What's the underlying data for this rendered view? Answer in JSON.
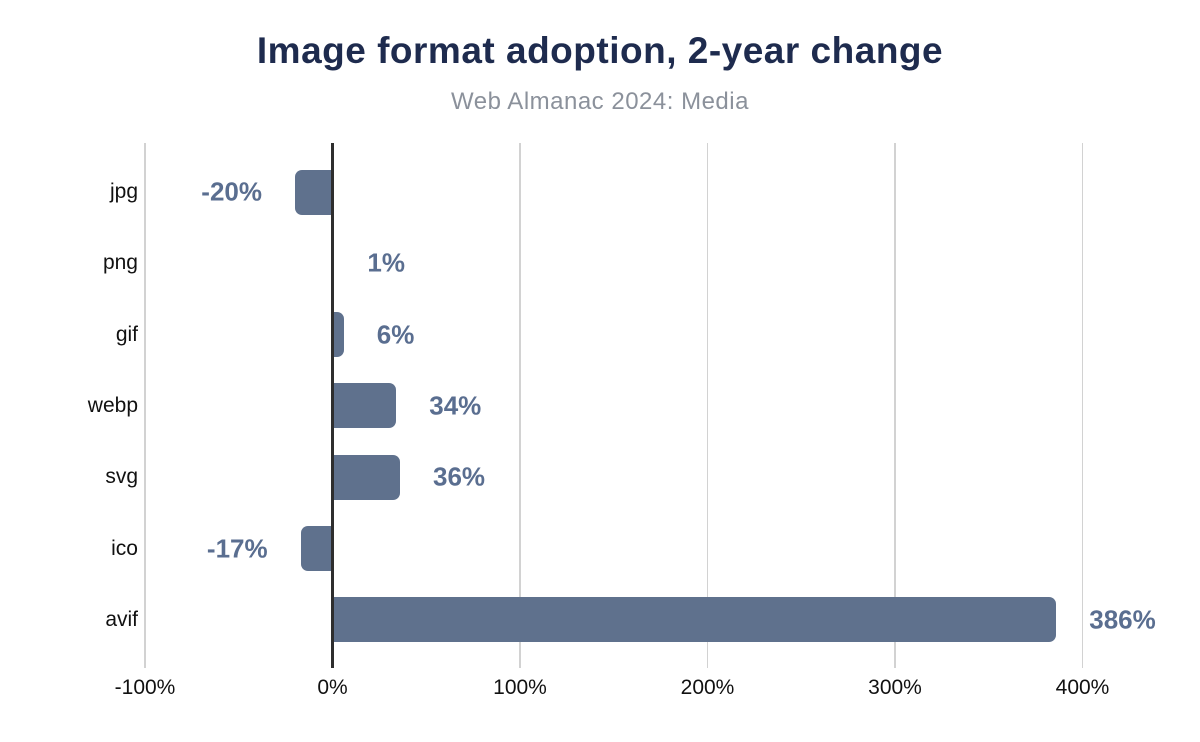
{
  "chart_data": {
    "type": "bar",
    "orientation": "horizontal",
    "title": "Image format adoption, 2-year change",
    "subtitle": "Web Almanac 2024: Media",
    "categories": [
      "jpg",
      "png",
      "gif",
      "webp",
      "svg",
      "ico",
      "avif"
    ],
    "values": [
      -20,
      1,
      6,
      34,
      36,
      -17,
      386
    ],
    "data_labels": [
      "-20%",
      "1%",
      "6%",
      "34%",
      "36%",
      "-17%",
      "386%"
    ],
    "xlabel": "",
    "ylabel": "",
    "xlim": [
      -100,
      440
    ],
    "x_ticks": [
      -100,
      0,
      100,
      200,
      300,
      400
    ],
    "x_tick_labels": [
      "-100%",
      "0%",
      "100%",
      "200%",
      "300%",
      "400%"
    ],
    "grid": "vertical-gridlines-on",
    "legend": "none",
    "colors": {
      "bar": "#5f718d",
      "data_label": "#5a6e90",
      "title": "#1e2b4e",
      "subtitle": "#8b919b",
      "zero_axis": "#2e2e2e",
      "gridline": "#d2d2d2",
      "tick_label": "#111111",
      "category_label": "#111111",
      "background": "#ffffff"
    }
  }
}
